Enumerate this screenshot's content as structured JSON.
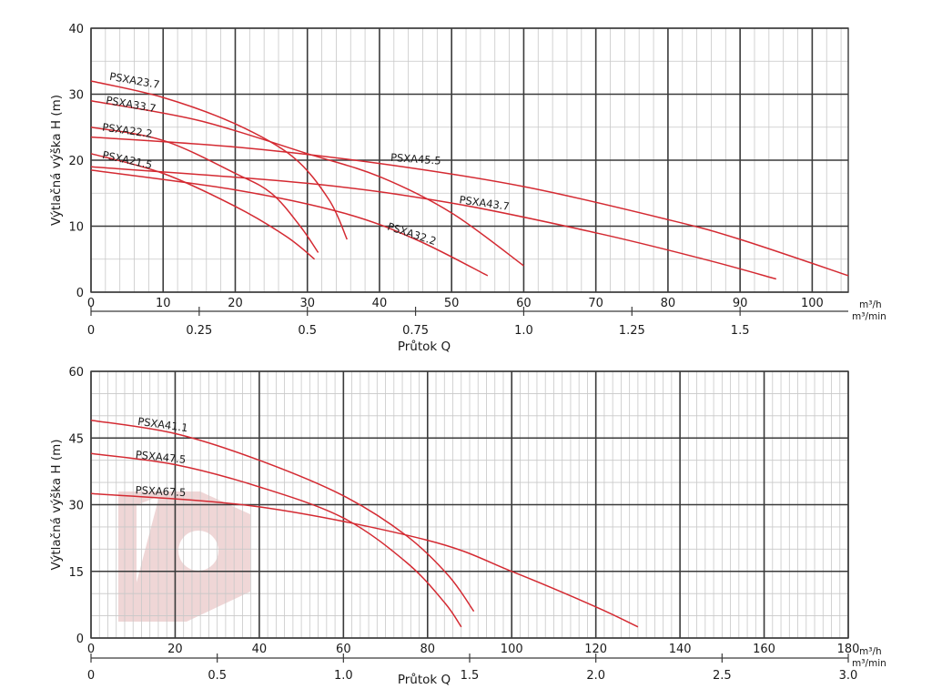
{
  "chart_data": [
    {
      "type": "line",
      "ylabel": "Výtlačná výška H (m)",
      "xlabel": "Průtok Q",
      "x_unit_primary": "m³/h",
      "x_unit_secondary": "m³/min",
      "xlim": [
        0,
        105
      ],
      "ylim": [
        0,
        40
      ],
      "x_ticks": [
        0,
        10,
        20,
        30,
        40,
        50,
        60,
        70,
        80,
        90,
        100
      ],
      "y_ticks": [
        0,
        10,
        20,
        30,
        40
      ],
      "secondary_ticks": [
        {
          "value": 0,
          "label": "0"
        },
        {
          "value": 0.25,
          "label": "0.25"
        },
        {
          "value": 0.5,
          "label": "0.5"
        },
        {
          "value": 0.75,
          "label": "0.75"
        },
        {
          "value": 1.0,
          "label": "1.0"
        },
        {
          "value": 1.25,
          "label": "1.25"
        },
        {
          "value": 1.5,
          "label": "1.5"
        }
      ],
      "grid": true,
      "series": [
        {
          "name": "PSXA23.7",
          "x": [
            0,
            10,
            20,
            28,
            33,
            35.5
          ],
          "y": [
            32,
            29.5,
            25.5,
            20.5,
            14,
            8
          ]
        },
        {
          "name": "PSXA33.7",
          "x": [
            0,
            15,
            30,
            40,
            50,
            60
          ],
          "y": [
            29,
            26,
            21,
            17.5,
            12,
            4
          ]
        },
        {
          "name": "PSXA22.2",
          "x": [
            0,
            10,
            20,
            25,
            29,
            31.5
          ],
          "y": [
            25,
            23,
            18,
            15,
            10,
            6
          ]
        },
        {
          "name": "PSXA21.5",
          "x": [
            0,
            10,
            20,
            27,
            31
          ],
          "y": [
            21,
            18,
            13,
            8.5,
            5
          ]
        },
        {
          "name": "PSXA45.5",
          "x": [
            0,
            20,
            40,
            60,
            80,
            90,
            105
          ],
          "y": [
            23.5,
            22,
            19.5,
            16,
            11,
            8,
            2.5
          ]
        },
        {
          "name": "PSXA43.7",
          "x": [
            0,
            30,
            50,
            70,
            85,
            95
          ],
          "y": [
            19,
            16.5,
            13.5,
            9,
            5,
            2
          ]
        },
        {
          "name": "PSXA32.2",
          "x": [
            0,
            20,
            35,
            45,
            55
          ],
          "y": [
            18.5,
            15.5,
            12,
            8,
            2.5
          ]
        }
      ],
      "labels": [
        {
          "text": "PSXA23.7",
          "x": 2.5,
          "y": 32.2,
          "angle": -10
        },
        {
          "text": "PSXA33.7",
          "x": 2,
          "y": 28.6,
          "angle": -10
        },
        {
          "text": "PSXA22.2",
          "x": 1.5,
          "y": 24.5,
          "angle": -8
        },
        {
          "text": "PSXA21.5",
          "x": 1.5,
          "y": 20.3,
          "angle": -12
        },
        {
          "text": "PSXA45.5",
          "x": 41.5,
          "y": 19.9,
          "angle": -4
        },
        {
          "text": "PSXA43.7",
          "x": 51,
          "y": 13.5,
          "angle": -8
        },
        {
          "text": "PSXA32.2",
          "x": 41,
          "y": 9.5,
          "angle": -18
        }
      ]
    },
    {
      "type": "line",
      "ylabel": "Výtlačná výška H (m)",
      "xlabel": "Průtok Q",
      "x_unit_primary": "m³/h",
      "x_unit_secondary": "m³/min",
      "xlim": [
        0,
        180
      ],
      "ylim": [
        0,
        60
      ],
      "x_ticks": [
        0,
        20,
        40,
        60,
        80,
        100,
        120,
        140,
        160,
        180
      ],
      "y_ticks": [
        0,
        15,
        30,
        45,
        60
      ],
      "secondary_ticks": [
        {
          "value": 0,
          "label": "0"
        },
        {
          "value": 0.5,
          "label": "0.5"
        },
        {
          "value": 1.0,
          "label": "1.0"
        },
        {
          "value": 1.5,
          "label": "1.5"
        },
        {
          "value": 2.0,
          "label": "2.0"
        },
        {
          "value": 2.5,
          "label": "2.5"
        },
        {
          "value": 3.0,
          "label": "3.0"
        }
      ],
      "grid": true,
      "series": [
        {
          "name": "PSXA41.1",
          "x": [
            0,
            20,
            40,
            60,
            75,
            85,
            91
          ],
          "y": [
            49,
            46,
            40,
            32,
            23,
            14,
            6
          ]
        },
        {
          "name": "PSXA47.5",
          "x": [
            0,
            20,
            40,
            60,
            75,
            84,
            88
          ],
          "y": [
            41.5,
            39,
            34,
            27,
            17,
            8,
            2.5
          ]
        },
        {
          "name": "PSXA67.5",
          "x": [
            0,
            40,
            80,
            100,
            120,
            130
          ],
          "y": [
            32.5,
            29.5,
            22,
            15,
            7,
            2.5
          ]
        }
      ],
      "labels": [
        {
          "text": "PSXA41.1",
          "x": 11,
          "y": 48,
          "angle": -8
        },
        {
          "text": "PSXA47.5",
          "x": 10.5,
          "y": 40.5,
          "angle": -6
        },
        {
          "text": "PSXA67.5",
          "x": 10.5,
          "y": 32.5,
          "angle": -3
        }
      ]
    }
  ]
}
